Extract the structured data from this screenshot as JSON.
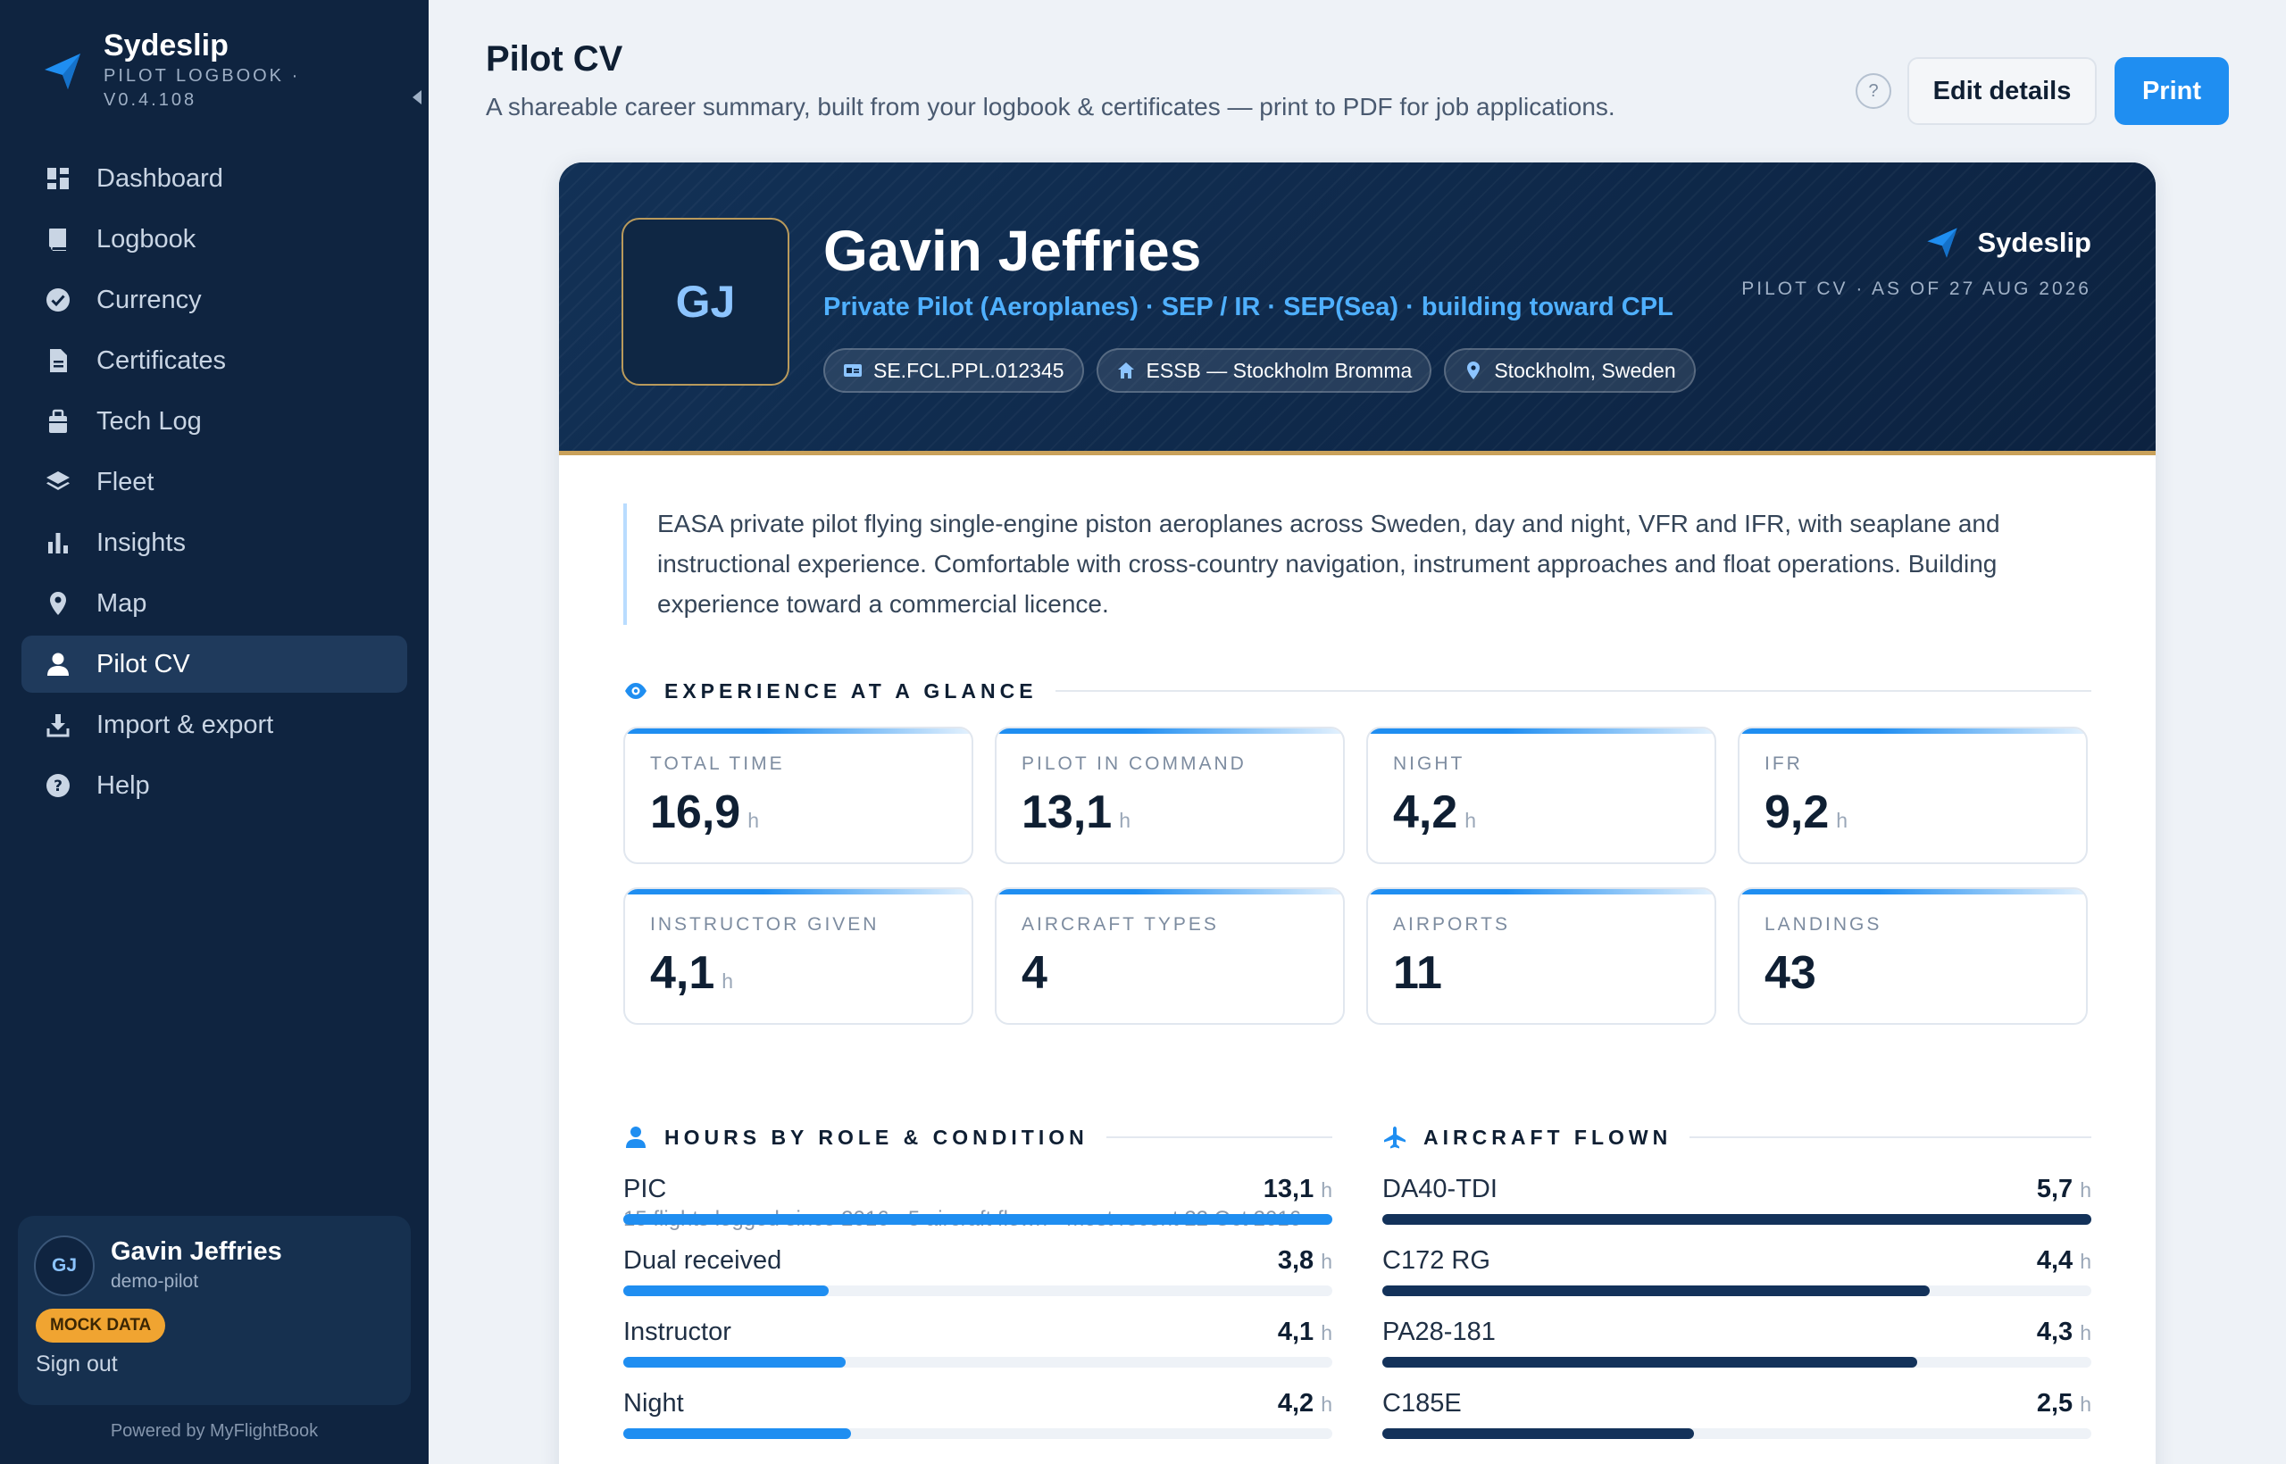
{
  "app": {
    "name": "Sydeslip",
    "subtitle": "PILOT LOGBOOK · V0.4.108"
  },
  "sidebar": {
    "items": [
      {
        "label": "Dashboard",
        "icon": "dashboard-icon"
      },
      {
        "label": "Logbook",
        "icon": "book-icon"
      },
      {
        "label": "Currency",
        "icon": "check-circle-icon"
      },
      {
        "label": "Certificates",
        "icon": "document-icon"
      },
      {
        "label": "Tech Log",
        "icon": "toolbox-icon"
      },
      {
        "label": "Fleet",
        "icon": "layers-icon"
      },
      {
        "label": "Insights",
        "icon": "bar-chart-icon"
      },
      {
        "label": "Map",
        "icon": "map-pin-icon"
      },
      {
        "label": "Pilot CV",
        "icon": "person-icon",
        "active": true
      },
      {
        "label": "Import & export",
        "icon": "download-icon"
      },
      {
        "label": "Help",
        "icon": "help-circle-icon"
      }
    ],
    "user": {
      "initials": "GJ",
      "name": "Gavin Jeffries",
      "handle": "demo-pilot",
      "badge": "MOCK DATA",
      "sign_out": "Sign out"
    },
    "powered_by": "Powered by MyFlightBook"
  },
  "header": {
    "title": "Pilot CV",
    "subtitle": "A shareable career summary, built from your logbook & certificates — print to PDF for job applications.",
    "help_label": "?",
    "edit_label": "Edit details",
    "print_label": "Print"
  },
  "cv": {
    "initials": "GJ",
    "name": "Gavin Jeffries",
    "rating_line": "Private Pilot (Aeroplanes) · SEP / IR · SEP(Sea) · building toward CPL",
    "chips": [
      {
        "icon": "id-card-icon",
        "label": "SE.FCL.PPL.012345"
      },
      {
        "icon": "home-icon",
        "label": "ESSB — Stockholm Bromma"
      },
      {
        "icon": "map-pin-icon",
        "label": "Stockholm, Sweden"
      }
    ],
    "brand": "Sydeslip",
    "as_of": "PILOT CV · AS OF 27 AUG 2026",
    "summary": "EASA private pilot flying single-engine piston aeroplanes across Sweden, day and night, VFR and IFR, with seaplane and instructional experience. Comfortable with cross-country navigation, instrument approaches and float operations. Building experience toward a commercial licence.",
    "experience_title": "EXPERIENCE AT A GLANCE",
    "stats": [
      {
        "label": "TOTAL TIME",
        "value": "16,9",
        "unit": "h"
      },
      {
        "label": "PILOT IN COMMAND",
        "value": "13,1",
        "unit": "h"
      },
      {
        "label": "NIGHT",
        "value": "4,2",
        "unit": "h"
      },
      {
        "label": "IFR",
        "value": "9,2",
        "unit": "h"
      },
      {
        "label": "INSTRUCTOR GIVEN",
        "value": "4,1",
        "unit": "h"
      },
      {
        "label": "AIRCRAFT TYPES",
        "value": "4",
        "unit": ""
      },
      {
        "label": "AIRPORTS",
        "value": "11",
        "unit": ""
      },
      {
        "label": "LANDINGS",
        "value": "43",
        "unit": ""
      }
    ],
    "footnote": "15 flights logged since 2016 · 5 aircraft flown · most recent 22 Oct 2016",
    "hours_title": "HOURS BY ROLE & CONDITION",
    "hours": [
      {
        "label": "PIC",
        "value": "13,1",
        "unit": "h",
        "fraction": 1.0
      },
      {
        "label": "Dual received",
        "value": "3,8",
        "unit": "h",
        "fraction": 0.29
      },
      {
        "label": "Instructor",
        "value": "4,1",
        "unit": "h",
        "fraction": 0.313
      },
      {
        "label": "Night",
        "value": "4,2",
        "unit": "h",
        "fraction": 0.321
      }
    ],
    "aircraft_title": "AIRCRAFT FLOWN",
    "aircraft": [
      {
        "label": "DA40-TDI",
        "value": "5,7",
        "unit": "h",
        "fraction": 1.0
      },
      {
        "label": "C172 RG",
        "value": "4,4",
        "unit": "h",
        "fraction": 0.772
      },
      {
        "label": "PA28-181",
        "value": "4,3",
        "unit": "h",
        "fraction": 0.754
      },
      {
        "label": "C185E",
        "value": "2,5",
        "unit": "h",
        "fraction": 0.439
      }
    ]
  },
  "colors": {
    "accent": "#1f8ef1",
    "sidebar_bg": "#0f2440",
    "hero_gold": "#c9a15a",
    "aircraft_bar": "#13325a"
  }
}
